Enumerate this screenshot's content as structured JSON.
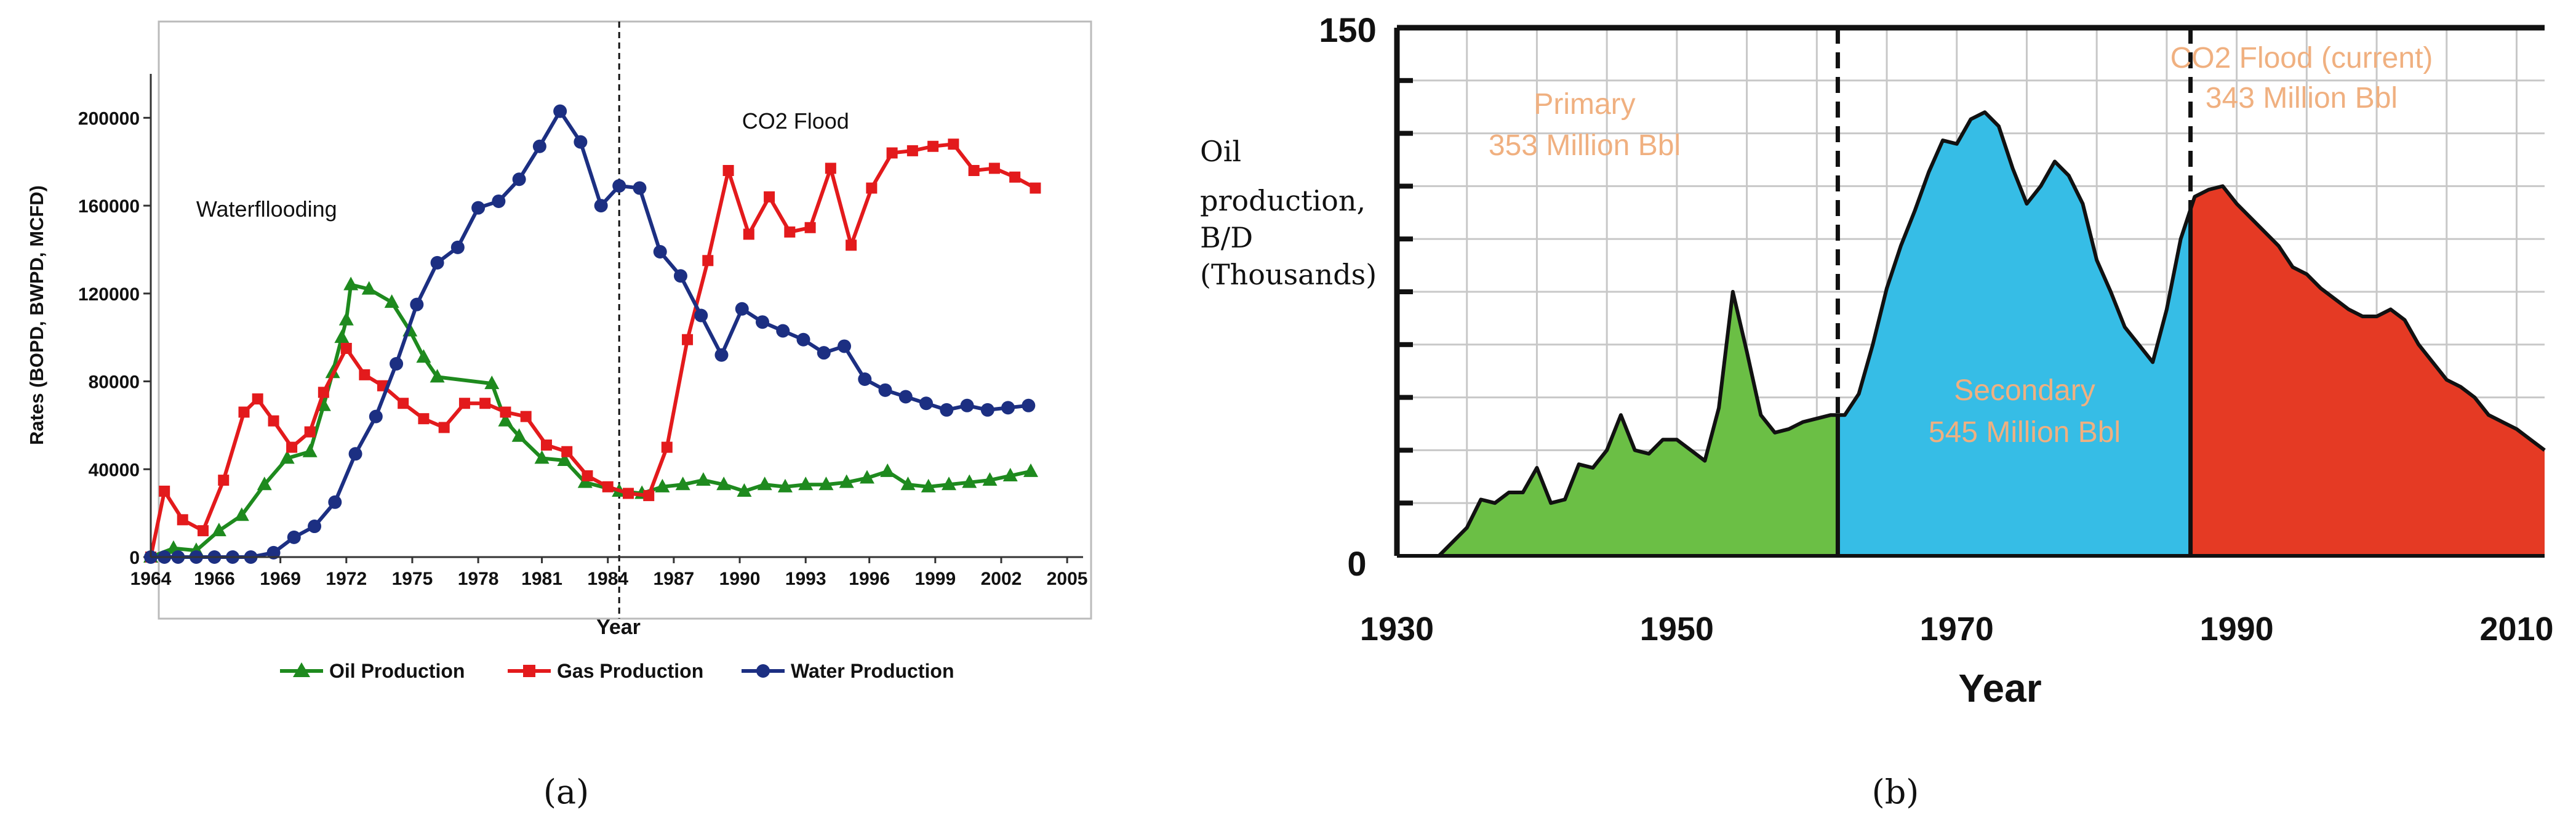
{
  "chart_data": [
    {
      "type": "line",
      "panel_label": "(a)",
      "title": "",
      "xlabel": "Year",
      "ylabel": "Rates (BOPD, BWPD, MCFD)",
      "xlim": [
        1964,
        2005
      ],
      "ylim": [
        0,
        220000
      ],
      "x_ticks": [
        "1964",
        "1966",
        "1969",
        "1972",
        "1975",
        "1978",
        "1981",
        "1984",
        "1987",
        "1990",
        "1993",
        "1996",
        "1999",
        "2002",
        "2005"
      ],
      "x_tick_values": [
        1964,
        1966.8,
        1969.7,
        1972.6,
        1975.5,
        1978.4,
        1981.2,
        1984.1,
        1987,
        1989.9,
        1992.8,
        1995.6,
        1998.5,
        2001.4,
        2004.3
      ],
      "y_ticks": [
        0,
        40000,
        80000,
        120000,
        160000,
        200000
      ],
      "y_tick_labels": [
        "0",
        "40000",
        "80000",
        "120000",
        "160000",
        "200000"
      ],
      "divider_year": 1984.6,
      "annotations": [
        {
          "text": "Waterfllooding",
          "x": 1966,
          "y": 155000
        },
        {
          "text": "CO2 Flood",
          "x": 1990,
          "y": 195000
        }
      ],
      "legend": [
        "Oil Production",
        "Gas Production",
        "Water Production"
      ],
      "series": [
        {
          "name": "Oil Production",
          "color": "#1e8a1e",
          "marker": "triangle",
          "x": [
            1964,
            1965,
            1966,
            1967,
            1968,
            1969,
            1970,
            1971,
            1971.6,
            1972,
            1972.4,
            1972.6,
            1972.8,
            1973.6,
            1974.6,
            1975.4,
            1976,
            1976.6,
            1979,
            1979.6,
            1980.2,
            1981.2,
            1982.2,
            1983.1,
            1984.6,
            1985.6,
            1986.5,
            1987.4,
            1988.3,
            1989.2,
            1990.1,
            1991,
            1991.9,
            1992.8,
            1993.7,
            1994.6,
            1995.5,
            1996.4,
            1997.3,
            1998.2,
            1999.1,
            2000,
            2000.9,
            2001.8,
            2002.7
          ],
          "y": [
            0,
            4000,
            3000,
            12000,
            19000,
            33000,
            45000,
            48000,
            69000,
            84000,
            100000,
            108000,
            124000,
            122000,
            116000,
            103000,
            91000,
            82000,
            79000,
            62000,
            55000,
            45000,
            44000,
            34000,
            30000,
            29000,
            32000,
            33000,
            35000,
            33000,
            30000,
            33000,
            32000,
            33000,
            33000,
            34000,
            36000,
            39000,
            33000,
            32000,
            33000,
            34000,
            35000,
            37000,
            39000
          ]
        },
        {
          "name": "Gas Production",
          "color": "#e31a1c",
          "marker": "square",
          "x": [
            1964,
            1964.6,
            1965.4,
            1966.3,
            1967.2,
            1968.1,
            1968.7,
            1969.4,
            1970.2,
            1971,
            1971.6,
            1972.6,
            1973.4,
            1974.2,
            1975.1,
            1976,
            1976.9,
            1977.8,
            1978.7,
            1979.6,
            1980.5,
            1981.4,
            1982.3,
            1983.2,
            1984.1,
            1985,
            1985.9,
            1986.7,
            1987.6,
            1988.5,
            1989.4,
            1990.3,
            1991.2,
            1992.1,
            1993,
            1993.9,
            1994.8,
            1995.7,
            1996.6,
            1997.5,
            1998.4,
            1999.3,
            2000.2,
            2001.1,
            2002,
            2002.9
          ],
          "y": [
            0,
            30000,
            17000,
            12000,
            35000,
            66000,
            72000,
            62000,
            50000,
            57000,
            75000,
            95000,
            83000,
            78000,
            70000,
            63000,
            59000,
            70000,
            70000,
            66000,
            64000,
            51000,
            48000,
            37000,
            32000,
            29000,
            28000,
            50000,
            99000,
            135000,
            176000,
            147000,
            164000,
            148000,
            150000,
            177000,
            142000,
            168000,
            184000,
            185000,
            187000,
            188000,
            176000,
            177000,
            173000,
            168000
          ]
        },
        {
          "name": "Water Production",
          "color": "#1c2f82",
          "marker": "circle",
          "x": [
            1964,
            1964.6,
            1965.2,
            1966,
            1966.8,
            1967.6,
            1968.4,
            1969.4,
            1970.3,
            1971.2,
            1972.1,
            1973,
            1973.9,
            1974.8,
            1975.7,
            1976.6,
            1977.5,
            1978.4,
            1979.3,
            1980.2,
            1981.1,
            1982,
            1982.9,
            1983.8,
            1984.6,
            1985.5,
            1986.4,
            1987.3,
            1988.2,
            1989.1,
            1990,
            1990.9,
            1991.8,
            1992.7,
            1993.6,
            1994.5,
            1995.4,
            1996.3,
            1997.2,
            1998.1,
            1999,
            1999.9,
            2000.8,
            2001.7,
            2002.6
          ],
          "y": [
            0,
            0,
            0,
            0,
            0,
            0,
            0,
            2000,
            9000,
            14000,
            25000,
            47000,
            64000,
            88000,
            115000,
            134000,
            141000,
            159000,
            162000,
            172000,
            187000,
            203000,
            189000,
            160000,
            169000,
            168000,
            139000,
            128000,
            110000,
            92000,
            113000,
            107000,
            103000,
            99000,
            93000,
            96000,
            81000,
            76000,
            73000,
            70000,
            67000,
            69000,
            67000,
            68000,
            69000
          ]
        }
      ]
    },
    {
      "type": "area",
      "panel_label": "(b)",
      "title": "",
      "xlabel": "Year",
      "ylabel_lines": [
        "Oil",
        "production,",
        "B/D",
        "(Thousands)"
      ],
      "xlim": [
        1930,
        2012
      ],
      "ylim": [
        0,
        150
      ],
      "x_ticks": [
        "1930",
        "1950",
        "1970",
        "1990",
        "2010"
      ],
      "x_tick_values": [
        1930,
        1950,
        1970,
        1990,
        2010
      ],
      "y_ticks": [
        "0",
        "150"
      ],
      "y_tick_values": [
        0,
        150
      ],
      "phase_dividers": [
        1961.5,
        1986.7
      ],
      "phases": [
        {
          "name": "Primary",
          "volume": "353 Million Bbl",
          "color": "#6bbf45",
          "from": 1930,
          "to": 1961.5
        },
        {
          "name": "Secondary",
          "volume": "545 Million Bbl",
          "color": "#36bde6",
          "from": 1961.5,
          "to": 1986.7
        },
        {
          "name": "CO2 Flood (current)",
          "volume": "343 Million Bbl",
          "color": "#e53a24",
          "from": 1986.7,
          "to": 2012
        }
      ],
      "annotation_color": "#f0b080",
      "series": [
        {
          "name": "Oil production",
          "x": [
            1930,
            1932,
            1933,
            1935,
            1936,
            1937,
            1938,
            1939,
            1940,
            1941,
            1942,
            1943,
            1944,
            1945,
            1946,
            1947,
            1948,
            1949,
            1950,
            1951,
            1952,
            1953,
            1954,
            1955,
            1956,
            1957,
            1958,
            1959,
            1960,
            1961,
            1962,
            1963,
            1964,
            1965,
            1966,
            1967,
            1968,
            1969,
            1970,
            1971,
            1972,
            1973,
            1974,
            1975,
            1976,
            1977,
            1978,
            1979,
            1980,
            1981,
            1982,
            1983,
            1984,
            1985,
            1986,
            1987,
            1988,
            1989,
            1990,
            1991,
            1992,
            1993,
            1994,
            1995,
            1996,
            1997,
            1998,
            1999,
            2000,
            2001,
            2002,
            2003,
            2004,
            2005,
            2006,
            2007,
            2008,
            2009,
            2010,
            2011,
            2012
          ],
          "y": [
            0,
            0,
            0,
            8,
            16,
            15,
            18,
            18,
            25,
            15,
            16,
            26,
            25,
            30,
            40,
            30,
            29,
            33,
            33,
            30,
            27,
            42,
            75,
            58,
            40,
            35,
            36,
            38,
            39,
            40,
            40,
            46,
            60,
            76,
            88,
            98,
            109,
            118,
            117,
            124,
            126,
            122,
            110,
            100,
            105,
            112,
            108,
            100,
            84,
            75,
            65,
            60,
            55,
            70,
            90,
            102,
            104,
            105,
            100,
            96,
            92,
            88,
            82,
            80,
            76,
            73,
            70,
            68,
            68,
            70,
            67,
            60,
            55,
            50,
            48,
            45,
            40,
            38,
            36,
            33,
            30
          ]
        }
      ]
    }
  ]
}
